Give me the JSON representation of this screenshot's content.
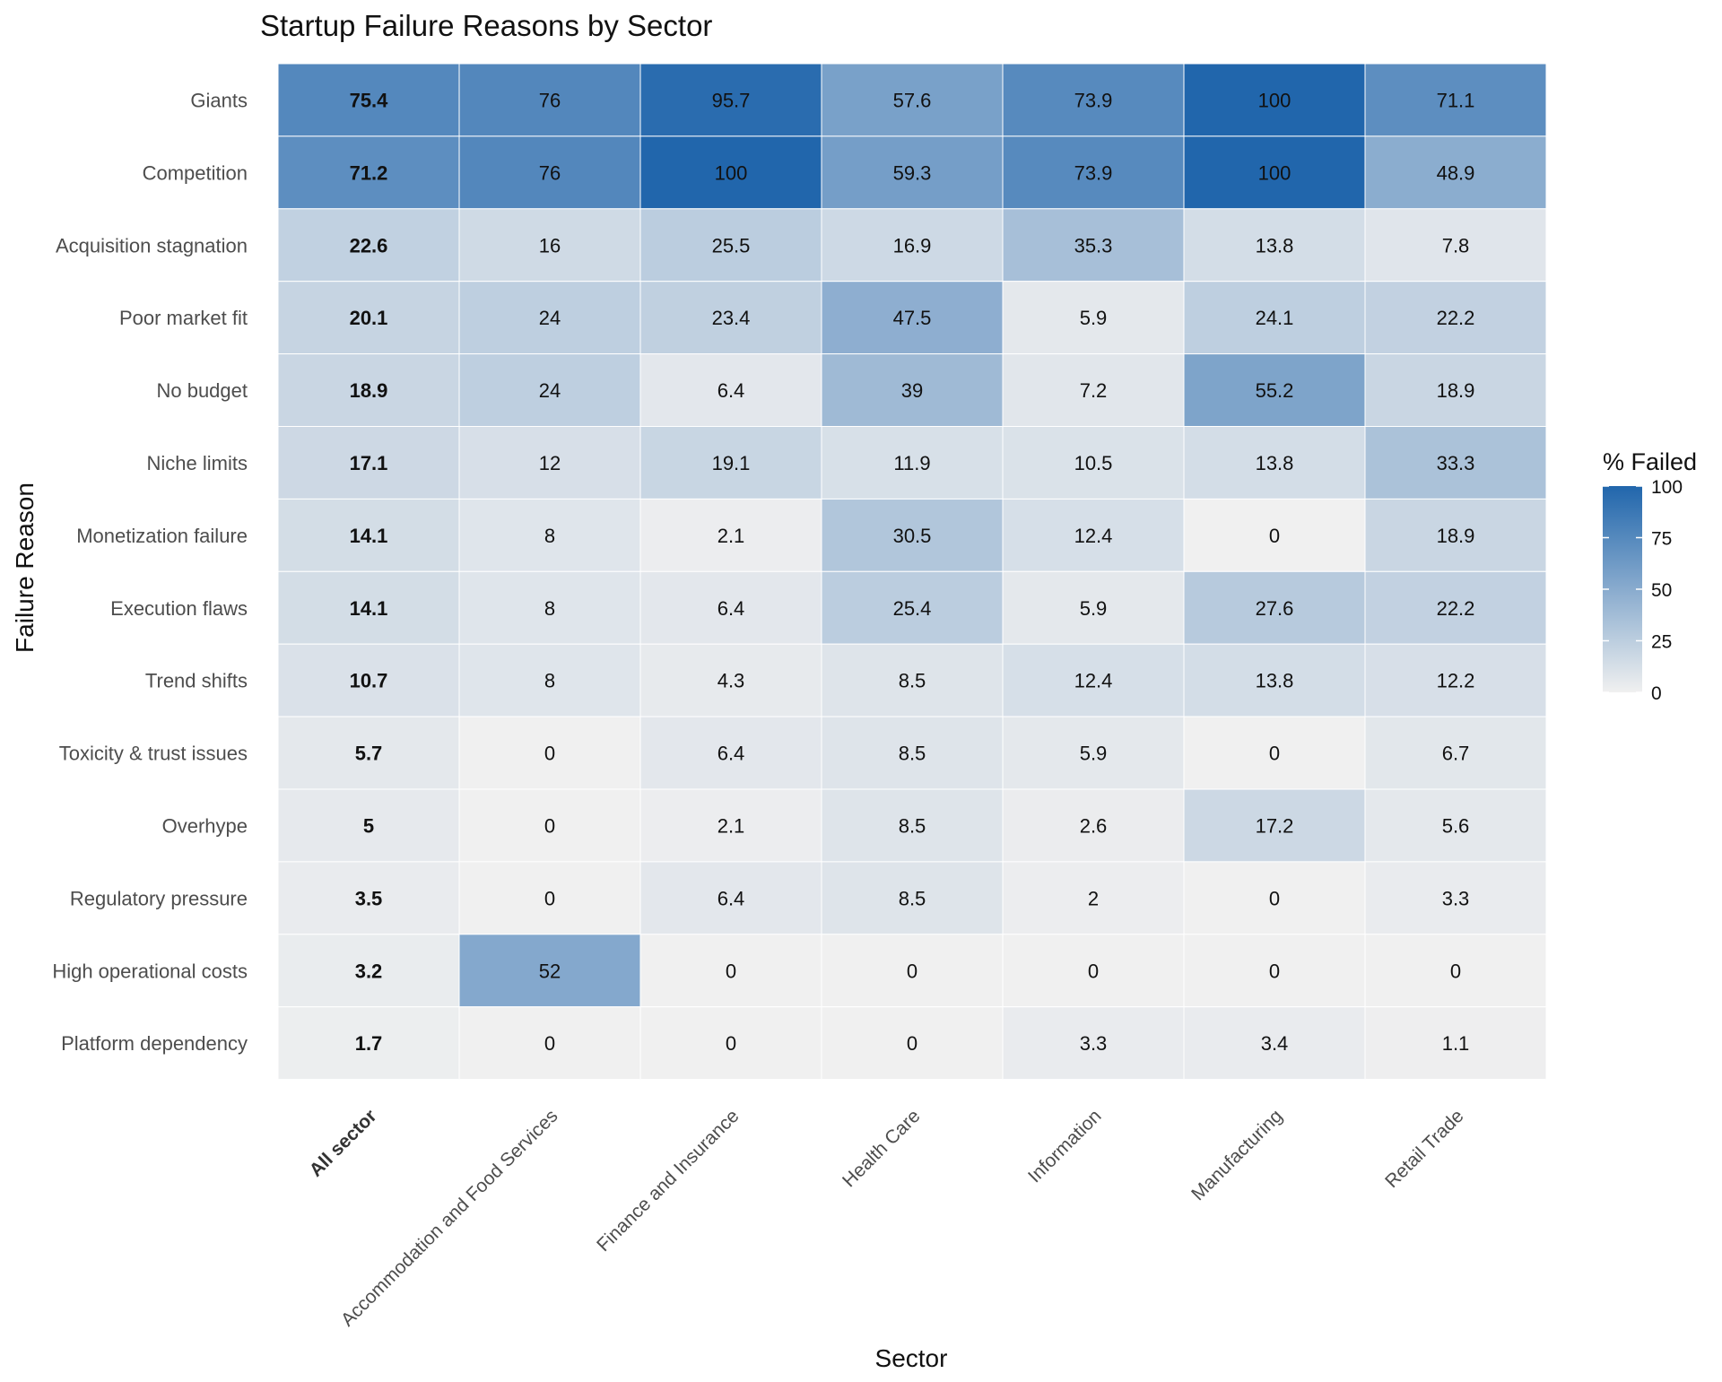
{
  "chart_data": {
    "type": "heatmap",
    "title": "Startup Failure Reasons by Sector",
    "xlabel": "Sector",
    "ylabel": "Failure Reason",
    "columns": [
      "All sector",
      "Accommodation and Food Services",
      "Finance and Insurance",
      "Health Care",
      "Information",
      "Manufacturing",
      "Retail Trade"
    ],
    "rows": [
      "Giants",
      "Competition",
      "Acquisition stagnation",
      "Poor market fit",
      "No budget",
      "Niche limits",
      "Monetization failure",
      "Execution flaws",
      "Trend shifts",
      "Toxicity & trust issues",
      "Overhype",
      "Regulatory pressure",
      "High operational costs",
      "Platform dependency"
    ],
    "values": [
      [
        75.4,
        76,
        95.7,
        57.6,
        73.9,
        100,
        71.1
      ],
      [
        71.2,
        76,
        100,
        59.3,
        73.9,
        100,
        48.9
      ],
      [
        22.6,
        16,
        25.5,
        16.9,
        35.3,
        13.8,
        7.8
      ],
      [
        20.1,
        24,
        23.4,
        47.5,
        5.9,
        24.1,
        22.2
      ],
      [
        18.9,
        24,
        6.4,
        39,
        7.2,
        55.2,
        18.9
      ],
      [
        17.1,
        12,
        19.1,
        11.9,
        10.5,
        13.8,
        33.3
      ],
      [
        14.1,
        8,
        2.1,
        30.5,
        12.4,
        0,
        18.9
      ],
      [
        14.1,
        8,
        6.4,
        25.4,
        5.9,
        27.6,
        22.2
      ],
      [
        10.7,
        8,
        4.3,
        8.5,
        12.4,
        13.8,
        12.2
      ],
      [
        5.7,
        0,
        6.4,
        8.5,
        5.9,
        0,
        6.7
      ],
      [
        5,
        0,
        2.1,
        8.5,
        2.6,
        17.2,
        5.6
      ],
      [
        3.5,
        0,
        6.4,
        8.5,
        2,
        0,
        3.3
      ],
      [
        3.2,
        52,
        0,
        0,
        0,
        0,
        0
      ],
      [
        1.7,
        0,
        0,
        0,
        3.3,
        3.4,
        1.1
      ]
    ],
    "bold_column": "All sector",
    "color_scale": {
      "low": "#f0f0f0",
      "high": "#2166ac",
      "domain": [
        0,
        100
      ]
    },
    "legend": {
      "title": "% Failed",
      "ticks": [
        0,
        25,
        50,
        75,
        100
      ],
      "placement": "right"
    }
  }
}
